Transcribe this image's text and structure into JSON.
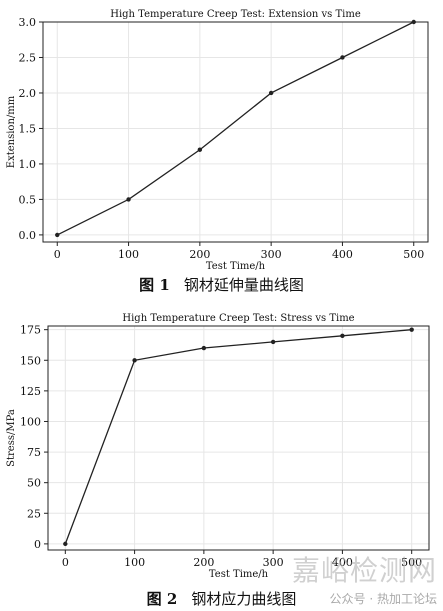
{
  "chart_data": [
    {
      "type": "line",
      "title": "High Temperature Creep Test: Extension vs Time",
      "xlabel": "Test Time/h",
      "ylabel": "Extension/mm",
      "x": [
        0,
        100,
        200,
        300,
        400,
        500
      ],
      "series": [
        {
          "values": [
            0.0,
            0.5,
            1.2,
            2.0,
            2.5,
            3.0
          ]
        }
      ],
      "xticks": [
        "0",
        "100",
        "200",
        "300",
        "400",
        "500"
      ],
      "yticks": [
        "0.0",
        "0.5",
        "1.0",
        "1.5",
        "2.0",
        "2.5",
        "3.0"
      ],
      "xlim": [
        -20,
        520
      ],
      "ylim": [
        -0.1,
        3.0
      ],
      "grid": true,
      "caption_num": "图 1",
      "caption_text": "钢材延伸量曲线图"
    },
    {
      "type": "line",
      "title": "High Temperature Creep Test: Stress vs Time",
      "xlabel": "Test Time/h",
      "ylabel": "Stress/MPa",
      "x": [
        0,
        100,
        200,
        300,
        400,
        500
      ],
      "series": [
        {
          "values": [
            0,
            150,
            160,
            165,
            170,
            175
          ]
        }
      ],
      "xticks": [
        "0",
        "100",
        "200",
        "300",
        "400",
        "500"
      ],
      "yticks": [
        "0",
        "25",
        "50",
        "75",
        "100",
        "125",
        "150",
        "175"
      ],
      "xlim": [
        -25,
        525
      ],
      "ylim": [
        -5,
        178
      ],
      "grid": true,
      "caption_num": "图 2",
      "caption_text": "钢材应力曲线图"
    }
  ],
  "watermark": {
    "main": "嘉峪检测网",
    "sub": "公众号 · 热加工论坛"
  },
  "colors": {
    "line": "#222222",
    "grid": "#e6e6e6",
    "axis": "#222222"
  }
}
